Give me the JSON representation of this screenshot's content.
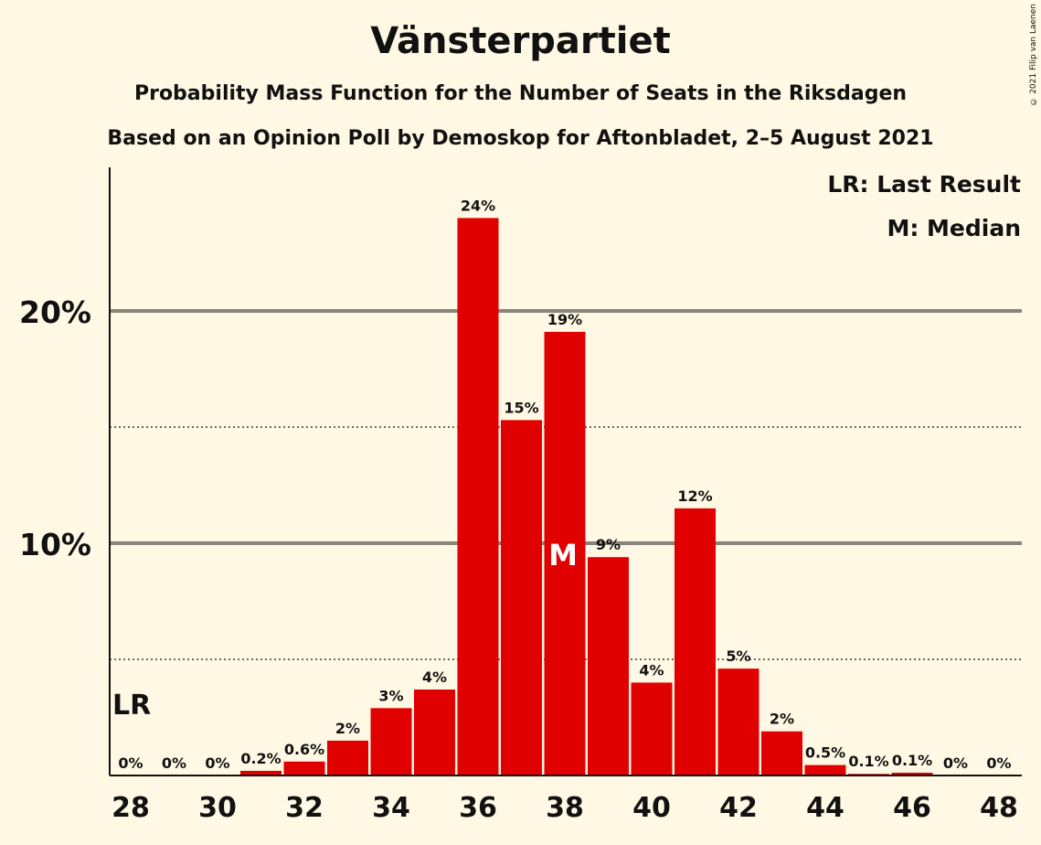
{
  "title": "Vänsterpartiet",
  "subtitle1": "Probability Mass Function for the Number of Seats in the Riksdagen",
  "subtitle2": "Based on an Opinion Poll by Demoskop for Aftonbladet, 2–5 August 2021",
  "copyright": "© 2021 Filip van Laenen",
  "legend": {
    "lr": "LR: Last Result",
    "median": "M: Median"
  },
  "colors": {
    "bar": "#e00000",
    "background": "#fff8e4"
  },
  "chart_data": {
    "type": "bar",
    "title": "Vänsterpartiet",
    "x": [
      28,
      29,
      30,
      31,
      32,
      33,
      34,
      35,
      36,
      37,
      38,
      39,
      40,
      41,
      42,
      43,
      44,
      45,
      46,
      47,
      48
    ],
    "values": [
      0,
      0,
      0,
      0.2,
      0.6,
      1.5,
      2.9,
      3.7,
      24.0,
      15.3,
      19.1,
      9.4,
      4.0,
      11.5,
      4.6,
      1.9,
      0.45,
      0.07,
      0.12,
      0,
      0
    ],
    "data_labels": [
      "0%",
      "0%",
      "0%",
      "0.2%",
      "0.6%",
      "2%",
      "3%",
      "4%",
      "24%",
      "15%",
      "19%",
      "9%",
      "4%",
      "12%",
      "5%",
      "2%",
      "0.5%",
      "0.1%",
      "0.1%",
      "0%",
      "0%"
    ],
    "x_ticks": [
      "28",
      "30",
      "32",
      "34",
      "36",
      "38",
      "40",
      "42",
      "44",
      "46",
      "48"
    ],
    "y_ticks": [
      "10%",
      "20%"
    ],
    "ylim": [
      0,
      26
    ],
    "gridlines_solid": [
      10,
      20
    ],
    "gridlines_dotted": [
      5,
      15
    ],
    "last_result_seat": 28,
    "last_result_marker": "LR",
    "median_seat": 38,
    "median_marker": "M"
  }
}
